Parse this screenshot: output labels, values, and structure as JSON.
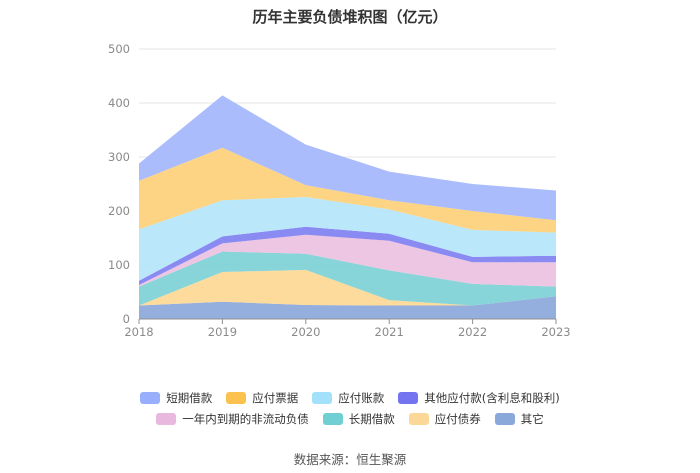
{
  "chart_data": {
    "type": "area",
    "stacked": true,
    "title": "历年主要负债堆积图（亿元）",
    "xlabel": "",
    "ylabel": "",
    "categories": [
      "2018",
      "2019",
      "2020",
      "2021",
      "2022",
      "2023"
    ],
    "ylim": [
      0,
      500
    ],
    "yticks": [
      "0",
      "100",
      "200",
      "300",
      "400",
      "500"
    ],
    "grid": true,
    "legend_position": "bottom",
    "series": [
      {
        "name": "其它",
        "color": "#8eaadb",
        "values": [
          25,
          32,
          26,
          25,
          25,
          42
        ]
      },
      {
        "name": "应付债券",
        "color": "#fcd998",
        "values": [
          0,
          55,
          65,
          10,
          0,
          0
        ]
      },
      {
        "name": "长期借款",
        "color": "#81d3d6",
        "values": [
          35,
          38,
          30,
          55,
          40,
          18
        ]
      },
      {
        "name": "一年内到期的非流动负债",
        "color": "#ebc3e2",
        "values": [
          3,
          15,
          35,
          55,
          40,
          45
        ]
      },
      {
        "name": "其他应付款(含利息和股利)",
        "color": "#8484f2",
        "values": [
          8,
          13,
          15,
          13,
          10,
          12
        ]
      },
      {
        "name": "应付账款",
        "color": "#b7e6fb",
        "values": [
          95,
          67,
          55,
          45,
          50,
          43
        ]
      },
      {
        "name": "应付票据",
        "color": "#fdd27c",
        "values": [
          90,
          97,
          22,
          17,
          35,
          23
        ]
      },
      {
        "name": "短期借款",
        "color": "#a5b8fb",
        "values": [
          32,
          97,
          75,
          53,
          50,
          55
        ]
      }
    ]
  },
  "legend_rows": [
    [
      {
        "label": "短期借款",
        "color": "#98affb"
      },
      {
        "label": "应付票据",
        "color": "#fcc24f"
      },
      {
        "label": "应付账款",
        "color": "#a3e0fa"
      },
      {
        "label": "其他应付款(含利息和股利)",
        "color": "#7474f0"
      }
    ],
    [
      {
        "label": "一年内到期的非流动负债",
        "color": "#e8b8df"
      },
      {
        "label": "长期借款",
        "color": "#6fcfd2"
      },
      {
        "label": "应付债券",
        "color": "#fbd897"
      },
      {
        "label": "其它",
        "color": "#8aa8da"
      }
    ]
  ],
  "source_note": "数据来源：恒生聚源"
}
